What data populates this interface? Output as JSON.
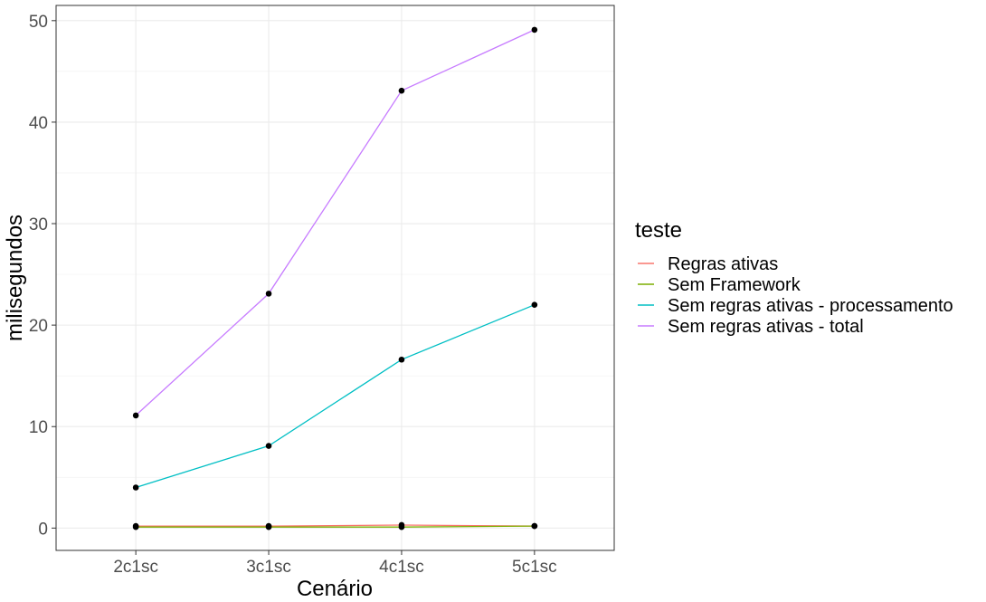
{
  "chart_data": {
    "type": "line",
    "xlabel": "Cenário",
    "ylabel": "milisegundos",
    "categories": [
      "2c1sc",
      "3c1sc",
      "4c1sc",
      "5c1sc"
    ],
    "ylim": [
      -2.2,
      51.5
    ],
    "yticks": [
      0,
      10,
      20,
      30,
      40,
      50
    ],
    "grid": true,
    "legend": {
      "title": "teste",
      "placement": "right"
    },
    "series": [
      {
        "name": "Regras ativas",
        "color": "#f8766d",
        "values": [
          0.2,
          0.2,
          0.3,
          0.2
        ]
      },
      {
        "name": "Sem Framework",
        "color": "#7cae00",
        "values": [
          0.1,
          0.1,
          0.1,
          0.2
        ]
      },
      {
        "name": "Sem regras ativas - processamento",
        "color": "#00bfc4",
        "values": [
          4.0,
          8.1,
          16.6,
          22.0
        ]
      },
      {
        "name": "Sem regras ativas - total",
        "color": "#c77cff",
        "values": [
          11.1,
          23.1,
          43.1,
          49.1
        ]
      }
    ]
  }
}
